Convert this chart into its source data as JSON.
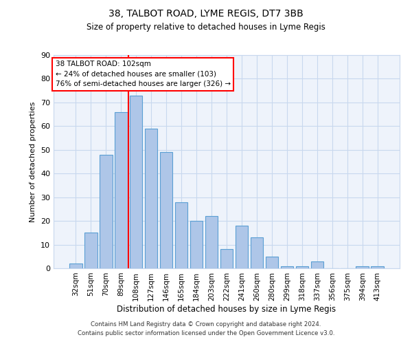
{
  "title1": "38, TALBOT ROAD, LYME REGIS, DT7 3BB",
  "title2": "Size of property relative to detached houses in Lyme Regis",
  "xlabel": "Distribution of detached houses by size in Lyme Regis",
  "ylabel": "Number of detached properties",
  "categories": [
    "32sqm",
    "51sqm",
    "70sqm",
    "89sqm",
    "108sqm",
    "127sqm",
    "146sqm",
    "165sqm",
    "184sqm",
    "203sqm",
    "222sqm",
    "241sqm",
    "260sqm",
    "280sqm",
    "299sqm",
    "318sqm",
    "337sqm",
    "356sqm",
    "375sqm",
    "394sqm",
    "413sqm"
  ],
  "values": [
    2,
    15,
    48,
    66,
    73,
    59,
    49,
    28,
    20,
    22,
    8,
    18,
    13,
    5,
    1,
    1,
    3,
    0,
    0,
    1,
    1
  ],
  "bar_color": "#aec6e8",
  "bar_edge_color": "#5a9fd4",
  "vline_x": 3.5,
  "vline_color": "red",
  "annotation_title": "38 TALBOT ROAD: 102sqm",
  "annotation_line1": "← 24% of detached houses are smaller (103)",
  "annotation_line2": "76% of semi-detached houses are larger (326) →",
  "annotation_box_color": "white",
  "annotation_box_edge": "red",
  "footer1": "Contains HM Land Registry data © Crown copyright and database right 2024.",
  "footer2": "Contains public sector information licensed under the Open Government Licence v3.0.",
  "ylim": [
    0,
    90
  ],
  "yticks": [
    0,
    10,
    20,
    30,
    40,
    50,
    60,
    70,
    80,
    90
  ],
  "background_color": "#eef3fb",
  "fig_background": "#ffffff"
}
